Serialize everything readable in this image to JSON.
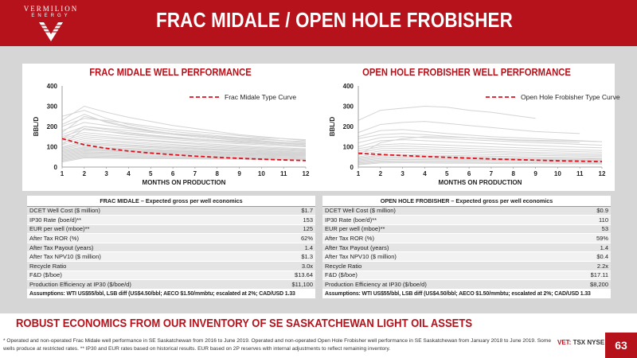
{
  "brand": {
    "name": "VERMILION",
    "sub": "ENERGY"
  },
  "title": "FRAC MIDALE / OPEN HOLE FROBISHER",
  "colors": {
    "brand_red": "#b5121b",
    "well_lines": "#d4d4d4",
    "type_curve": "#d7141e"
  },
  "chart_data": [
    {
      "type": "line",
      "title": "FRAC MIDALE WELL PERFORMANCE",
      "xlabel": "MONTHS ON PRODUCTION",
      "ylabel": "BBL/D",
      "x": [
        1,
        2,
        3,
        4,
        5,
        6,
        7,
        8,
        9,
        10,
        11,
        12
      ],
      "ylim": [
        0,
        400
      ],
      "yticks": [
        0,
        100,
        200,
        300,
        400
      ],
      "grid": false,
      "legend": "top-right",
      "series": [
        {
          "name": "Frac Midale Type Curve",
          "style": "dashed",
          "color": "#d7141e",
          "values": [
            140,
            110,
            92,
            79,
            69,
            61,
            54,
            48,
            43,
            39,
            35,
            32
          ]
        }
      ],
      "wells": [
        [
          230,
          300,
          270,
          245,
          225,
          205,
          190,
          175,
          160,
          150,
          140,
          130
        ],
        [
          250,
          280,
          240,
          210,
          190,
          175,
          165,
          155,
          145,
          140,
          130,
          120
        ],
        [
          200,
          240,
          230,
          215,
          200,
          185,
          175,
          165,
          155,
          145,
          140,
          135
        ],
        [
          180,
          220,
          205,
          190,
          175,
          165,
          155,
          145,
          140,
          130,
          120,
          115
        ],
        [
          160,
          200,
          190,
          180,
          170,
          160,
          150,
          140,
          130,
          125,
          118,
          110
        ],
        [
          150,
          185,
          175,
          165,
          155,
          145,
          135,
          128,
          120,
          115,
          110,
          105
        ],
        [
          140,
          170,
          160,
          150,
          142,
          135,
          128,
          120,
          115,
          110,
          104,
          100
        ],
        [
          130,
          160,
          150,
          140,
          132,
          125,
          118,
          112,
          106,
          100,
          95,
          90
        ],
        [
          120,
          150,
          142,
          135,
          128,
          120,
          113,
          106,
          100,
          95,
          90,
          86
        ],
        [
          110,
          140,
          132,
          125,
          118,
          112,
          105,
          100,
          95,
          90,
          86,
          82
        ],
        [
          100,
          130,
          124,
          118,
          112,
          106,
          100,
          95,
          90,
          86,
          82,
          78
        ],
        [
          95,
          120,
          115,
          110,
          104,
          99,
          94,
          89,
          85,
          81,
          77,
          74
        ],
        [
          90,
          115,
          110,
          105,
          100,
          95,
          90,
          86,
          82,
          78,
          74,
          70
        ],
        [
          85,
          108,
          104,
          99,
          95,
          90,
          86,
          82,
          78,
          74,
          70,
          67
        ],
        [
          80,
          100,
          96,
          92,
          88,
          84,
          80,
          76,
          73,
          70,
          67,
          64
        ],
        [
          75,
          95,
          92,
          88,
          84,
          80,
          77,
          74,
          71,
          68,
          65,
          62
        ],
        [
          70,
          90,
          86,
          83,
          80,
          77,
          74,
          71,
          68,
          65,
          62,
          60
        ],
        [
          65,
          85,
          82,
          79,
          76,
          73,
          70,
          67,
          64,
          62,
          60,
          58
        ],
        [
          60,
          80,
          78,
          75,
          72,
          70,
          68,
          65,
          62,
          60,
          58,
          56
        ],
        [
          55,
          75,
          72,
          70,
          68,
          66,
          64,
          62,
          60,
          58,
          56,
          54
        ],
        [
          50,
          70,
          68,
          66,
          64,
          62,
          60,
          58,
          56,
          54,
          52,
          50
        ],
        [
          45,
          65,
          63,
          61,
          59,
          57,
          55,
          53,
          51,
          50,
          48,
          46
        ],
        [
          40,
          60,
          58,
          56,
          54,
          52,
          50,
          49,
          47,
          46,
          44,
          42
        ],
        [
          35,
          55,
          53,
          51,
          50,
          48,
          47,
          45,
          44,
          43,
          42,
          40
        ],
        [
          30,
          50,
          48,
          47,
          45,
          44,
          43,
          42,
          41,
          40,
          39,
          38
        ],
        [
          25,
          45,
          44,
          43,
          42,
          41,
          40,
          39,
          38,
          37,
          36,
          35
        ],
        [
          170,
          250,
          225,
          200,
          180,
          165,
          150,
          140,
          135,
          128,
          122,
          115
        ],
        [
          210,
          260,
          220,
          195,
          178,
          165,
          158,
          150,
          142,
          136,
          130,
          125
        ],
        [
          140,
          200,
          185,
          170,
          158,
          148,
          140,
          132,
          126,
          120,
          115,
          110
        ],
        [
          110,
          190,
          175,
          160,
          150,
          142,
          134,
          128,
          122,
          116,
          110,
          104
        ]
      ]
    },
    {
      "type": "line",
      "title": "OPEN HOLE FROBISHER WELL PERFORMANCE",
      "xlabel": "MONTHS ON PRODUCTION",
      "ylabel": "BBL/D",
      "x": [
        1,
        2,
        3,
        4,
        5,
        6,
        7,
        8,
        9,
        10,
        11,
        12
      ],
      "ylim": [
        0,
        400
      ],
      "yticks": [
        0,
        100,
        200,
        300,
        400
      ],
      "grid": false,
      "legend": "top-right",
      "series": [
        {
          "name": "Open Hole Frobisher Type Curve",
          "style": "dashed",
          "color": "#d7141e",
          "values": [
            68,
            62,
            57,
            52,
            48,
            44,
            40,
            37,
            34,
            31,
            29,
            27
          ]
        }
      ],
      "wells": [
        [
          230,
          280,
          290,
          300,
          295,
          280,
          270,
          255,
          240
        ],
        [
          170,
          210,
          220,
          225,
          215,
          205,
          195,
          185,
          175,
          170,
          165
        ],
        [
          150,
          180,
          185,
          175,
          165,
          158,
          150,
          145,
          140,
          135,
          130,
          125
        ],
        [
          140,
          160,
          165,
          160,
          152,
          145,
          138,
          132,
          128,
          124,
          120
        ],
        [
          120,
          145,
          150,
          145,
          140,
          135,
          130,
          125,
          120,
          116,
          112,
          108
        ],
        [
          100,
          130,
          135,
          130,
          125,
          120,
          115,
          110,
          106,
          102,
          98,
          95
        ],
        [
          90,
          110,
          115,
          112,
          108,
          104,
          100,
          96,
          92,
          88,
          85,
          82
        ],
        [
          80,
          100,
          104,
          100,
          96,
          92,
          88,
          85,
          82,
          79,
          76,
          73
        ],
        [
          70,
          90,
          92,
          90,
          86,
          82,
          78,
          75,
          72,
          70,
          67,
          64
        ],
        [
          60,
          80,
          82,
          80,
          77,
          74,
          71,
          68,
          65,
          62,
          60,
          58
        ],
        [
          50,
          70,
          72,
          70,
          67,
          64,
          62,
          60,
          58,
          56,
          54,
          52
        ],
        [
          45,
          60,
          62,
          60,
          58,
          56,
          54,
          52,
          50,
          48,
          46,
          44
        ],
        [
          40,
          55,
          56,
          54,
          52,
          50,
          48,
          46,
          44,
          43,
          42,
          40
        ],
        [
          35,
          48,
          50,
          48,
          46,
          44,
          42,
          41,
          40,
          38,
          37,
          36
        ],
        [
          30,
          42,
          44,
          42,
          40,
          39,
          38,
          37,
          36,
          35,
          34,
          33
        ],
        [
          25,
          36,
          38,
          37,
          36,
          35,
          34,
          33,
          32,
          31,
          30,
          29
        ],
        [
          20,
          30,
          32,
          31,
          30,
          29,
          28,
          27,
          26,
          25,
          24,
          23
        ],
        [
          15,
          25,
          26,
          25,
          24,
          23,
          22,
          22,
          21,
          20,
          20,
          19
        ],
        [
          12,
          20,
          21,
          20,
          19,
          19,
          18,
          17,
          17,
          16,
          16,
          15
        ],
        [
          60,
          120,
          140,
          150,
          148,
          145,
          140,
          135,
          132,
          130,
          128,
          125
        ]
      ]
    }
  ],
  "tables": [
    {
      "header": "FRAC MIDALE – Expected gross per well economics",
      "rows": [
        {
          "label": "DCET Well Cost ($ million)",
          "value": "$1.7"
        },
        {
          "label": "IP30 Rate (boe/d)**",
          "value": "153"
        },
        {
          "label": "EUR per well (mboe)**",
          "value": "125"
        },
        {
          "label": "After Tax ROR (%)",
          "value": "62%"
        },
        {
          "label": "After Tax Payout (years)",
          "value": "1.4"
        },
        {
          "label": "After Tax NPV10 ($ million)",
          "value": "$1.3"
        },
        {
          "label": "Recycle Ratio",
          "value": "3.0x"
        },
        {
          "label": "F&D ($/boe)",
          "value": "$13.64"
        },
        {
          "label": "Production Efficiency at IP30 ($/boe/d)",
          "value": "$11,100"
        }
      ],
      "assumptions": "Assumptions: WTI US$55/bbl, LSB diff (US$4.50/bbl; AECO $1.50/mmbtu; escalated at 2%; CAD/USD 1.33"
    },
    {
      "header": "OPEN HOLE FROBISHER – Expected gross per well economics",
      "rows": [
        {
          "label": "DCET Well Cost ($ million)",
          "value": "$0.9"
        },
        {
          "label": "IP30 Rate (boe/d)**",
          "value": "110"
        },
        {
          "label": "EUR per well (mboe)**",
          "value": "53"
        },
        {
          "label": "After Tax ROR (%)",
          "value": "59%"
        },
        {
          "label": "After Tax Payout (years)",
          "value": "1.4"
        },
        {
          "label": "After Tax NPV10 ($ million)",
          "value": "$0.4"
        },
        {
          "label": "Recycle Ratio",
          "value": "2.2x"
        },
        {
          "label": "F&D ($/boe)",
          "value": "$17.11"
        },
        {
          "label": "Production Efficiency at IP30 ($/boe/d)",
          "value": "$8,200"
        }
      ],
      "assumptions": "Assumptions: WTI US$55/bbl, LSB diff (US$4.50/bbl; AECO $1.50/mmbtu; escalated at 2%; CAD/USD 1.33"
    }
  ],
  "banner": "ROBUST ECONOMICS FROM OUR INVENTORY OF SE SASKATCHEWAN LIGHT OIL ASSETS",
  "footnote": "* Operated and non-operated Frac Midale well performance in SE Saskatchewan from 2016 to June 2019. Operated and non-operated Open Hole Frobisher well performance in SE Saskatchewan from January 2018 to June 2019.  Some wells produce at restricted rates. ** IP30 and EUR rates based on historical results. EUR based on 2P reserves with internal adjustments to reflect remaining inventory.",
  "exchanges": {
    "a": "VET:",
    "b": "TSX",
    "c": "NYSE"
  },
  "page_number": "63"
}
